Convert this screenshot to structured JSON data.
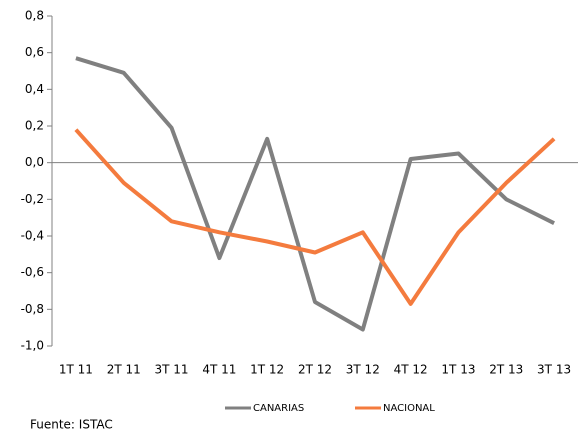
{
  "chart_data": {
    "type": "line",
    "categories": [
      "1T 11",
      "2T 11",
      "3T 11",
      "4T 11",
      "1T 12",
      "2T 12",
      "3T 12",
      "4T 12",
      "1T 13",
      "2T 13",
      "3T 13"
    ],
    "series": [
      {
        "name": "CANARIAS",
        "color": "#808080",
        "values": [
          0.57,
          0.49,
          0.19,
          -0.52,
          0.13,
          -0.76,
          -0.91,
          0.02,
          0.05,
          -0.2,
          -0.33
        ]
      },
      {
        "name": "NACIONAL",
        "color": "#f47b3e",
        "values": [
          0.18,
          -0.11,
          -0.32,
          -0.38,
          -0.43,
          -0.49,
          -0.38,
          -0.77,
          -0.38,
          -0.11,
          0.13
        ]
      }
    ],
    "ylim": [
      -1.0,
      0.8
    ],
    "yticks": [
      {
        "value": -1.0,
        "label": "-1,0"
      },
      {
        "value": -0.8,
        "label": "-0,8"
      },
      {
        "value": -0.6,
        "label": "-0,6"
      },
      {
        "value": -0.4,
        "label": "-0,4"
      },
      {
        "value": -0.2,
        "label": "-0,2"
      },
      {
        "value": 0.0,
        "label": "0,0"
      },
      {
        "value": 0.2,
        "label": "0,2"
      },
      {
        "value": 0.4,
        "label": "0,4"
      },
      {
        "value": 0.6,
        "label": "0,6"
      },
      {
        "value": 0.8,
        "label": "0,8"
      }
    ],
    "legend": "bottom",
    "source": "Fuente: ISTAC"
  }
}
